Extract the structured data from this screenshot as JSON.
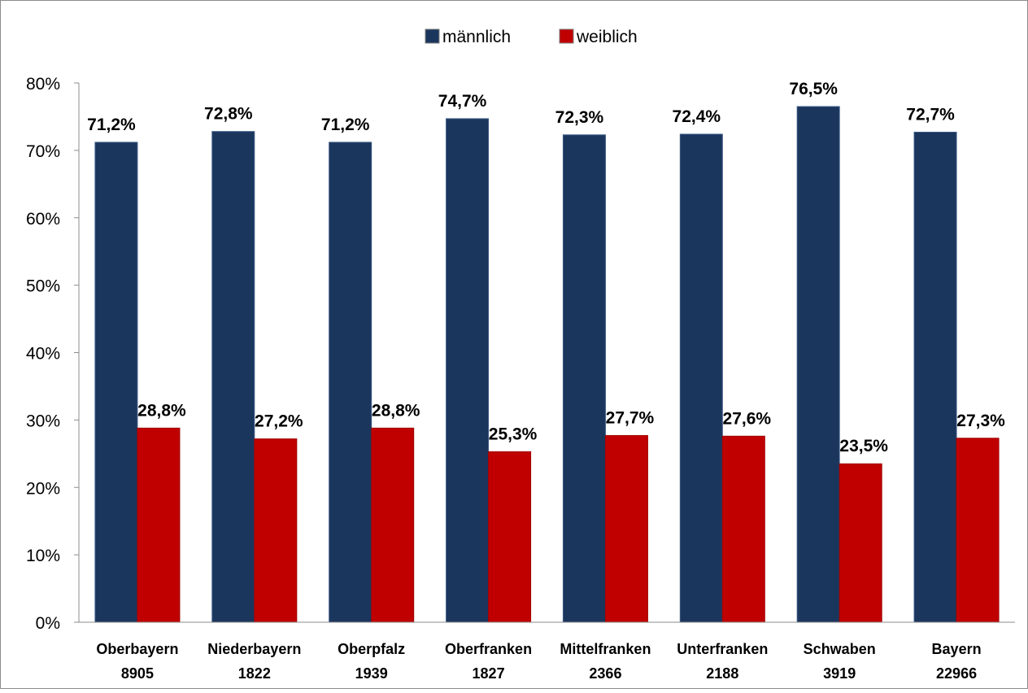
{
  "chart_data": {
    "type": "bar",
    "title": "",
    "xlabel": "",
    "ylabel": "",
    "ylim": [
      0,
      80
    ],
    "y_ticks": [
      "0%",
      "10%",
      "20%",
      "30%",
      "40%",
      "50%",
      "60%",
      "70%",
      "80%"
    ],
    "grid": false,
    "legend_position": "top-center",
    "categories": [
      "Oberbayern",
      "Niederbayern",
      "Oberpfalz",
      "Oberfranken",
      "Mittelfranken",
      "Unterfranken",
      "Schwaben",
      "Bayern"
    ],
    "category_counts": [
      "8905",
      "1822",
      "1939",
      "1827",
      "2366",
      "2188",
      "3919",
      "22966"
    ],
    "series": [
      {
        "name": "männlich",
        "color": "#1b365d",
        "values": [
          71.2,
          72.8,
          71.2,
          74.7,
          72.3,
          72.4,
          76.5,
          72.7
        ],
        "labels": [
          "71,2%",
          "72,8%",
          "71,2%",
          "74,7%",
          "72,3%",
          "72,4%",
          "76,5%",
          "72,7%"
        ]
      },
      {
        "name": "weiblich",
        "color": "#c00000",
        "values": [
          28.8,
          27.2,
          28.8,
          25.3,
          27.7,
          27.6,
          23.5,
          27.3
        ],
        "labels": [
          "28,8%",
          "27,2%",
          "28,8%",
          "25,3%",
          "27,7%",
          "27,6%",
          "23,5%",
          "27,3%"
        ]
      }
    ]
  }
}
